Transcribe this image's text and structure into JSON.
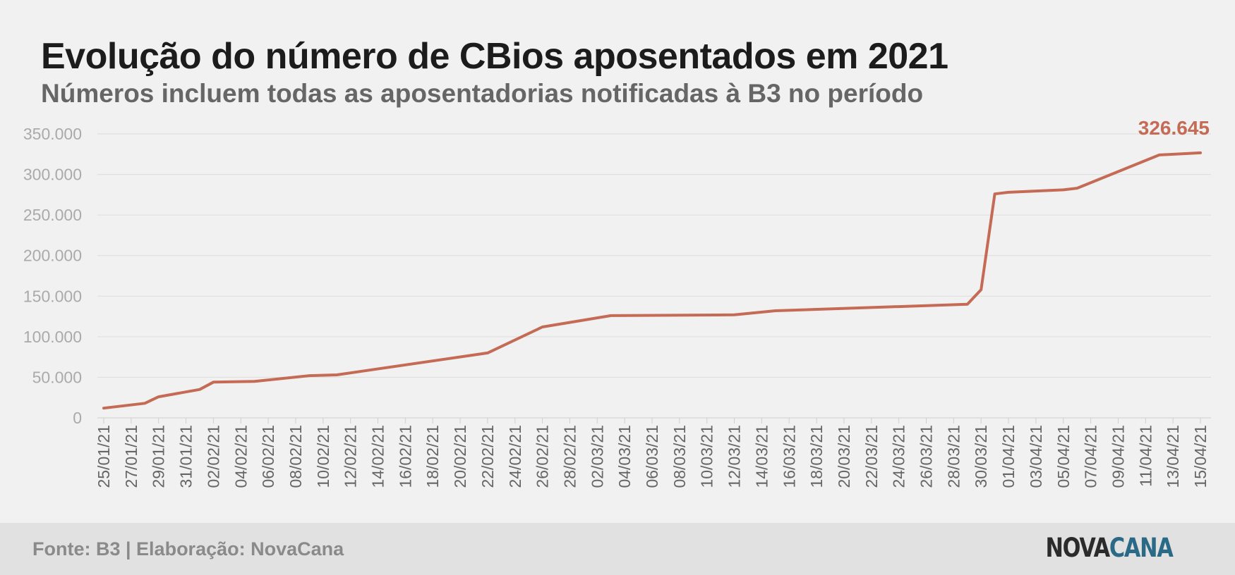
{
  "title": "Evolução do número de CBios aposentados em 2021",
  "subtitle": "Números incluem todas as aposentadorias notificadas à B3 no período",
  "footer": {
    "source": "Fonte: B3 | Elaboração: NovaCana",
    "logo_part1": "NOVA",
    "logo_part2": "CANA"
  },
  "colors": {
    "line": "#c46a55",
    "background": "#f1f1f1",
    "grid": "#dcdcdc",
    "axis_text": "#aaaaaa",
    "x_tick_text": "#666666",
    "logo_accent": "#2a6a86"
  },
  "chart_data": {
    "type": "line",
    "ylim": [
      0,
      350000
    ],
    "grid": true,
    "y_ticks": [
      {
        "value": 0,
        "label": "0"
      },
      {
        "value": 50000,
        "label": "50.000"
      },
      {
        "value": 100000,
        "label": "100.000"
      },
      {
        "value": 150000,
        "label": "150.000"
      },
      {
        "value": 200000,
        "label": "200.000"
      },
      {
        "value": 250000,
        "label": "250.000"
      },
      {
        "value": 300000,
        "label": "300.000"
      },
      {
        "value": 350000,
        "label": "350.000"
      }
    ],
    "x_ticks": [
      "25/01/21",
      "27/01/21",
      "29/01/21",
      "31/01/21",
      "02/02/21",
      "04/02/21",
      "06/02/21",
      "08/02/21",
      "10/02/21",
      "12/02/21",
      "14/02/21",
      "16/02/21",
      "18/02/21",
      "20/02/21",
      "22/02/21",
      "24/02/21",
      "26/02/21",
      "28/02/21",
      "02/03/21",
      "04/03/21",
      "06/03/21",
      "08/03/21",
      "10/03/21",
      "12/03/21",
      "14/03/21",
      "16/03/21",
      "18/03/21",
      "20/03/21",
      "22/03/21",
      "24/03/21",
      "26/03/21",
      "28/03/21",
      "30/03/21",
      "01/04/21",
      "03/04/21",
      "05/04/21",
      "07/04/21",
      "09/04/21",
      "11/04/21",
      "13/04/21",
      "15/04/21"
    ],
    "series": [
      {
        "points": [
          {
            "x": "25/01/21",
            "y": 12000
          },
          {
            "x": "28/01/21",
            "y": 18000
          },
          {
            "x": "29/01/21",
            "y": 26000
          },
          {
            "x": "01/02/21",
            "y": 35000
          },
          {
            "x": "02/02/21",
            "y": 44000
          },
          {
            "x": "05/02/21",
            "y": 45000
          },
          {
            "x": "09/02/21",
            "y": 52000
          },
          {
            "x": "11/02/21",
            "y": 53000
          },
          {
            "x": "22/02/21",
            "y": 80000
          },
          {
            "x": "26/02/21",
            "y": 112000
          },
          {
            "x": "03/03/21",
            "y": 126000
          },
          {
            "x": "12/03/21",
            "y": 127000
          },
          {
            "x": "15/03/21",
            "y": 132000
          },
          {
            "x": "29/03/21",
            "y": 140000
          },
          {
            "x": "30/03/21",
            "y": 158000
          },
          {
            "x": "31/03/21",
            "y": 276000
          },
          {
            "x": "01/04/21",
            "y": 278000
          },
          {
            "x": "05/04/21",
            "y": 281000
          },
          {
            "x": "06/04/21",
            "y": 283000
          },
          {
            "x": "12/04/21",
            "y": 324000
          },
          {
            "x": "15/04/21",
            "y": 326645
          }
        ]
      }
    ],
    "annotations": [
      {
        "text": "326.645",
        "x": "15/04/21",
        "y": 326645
      }
    ]
  }
}
